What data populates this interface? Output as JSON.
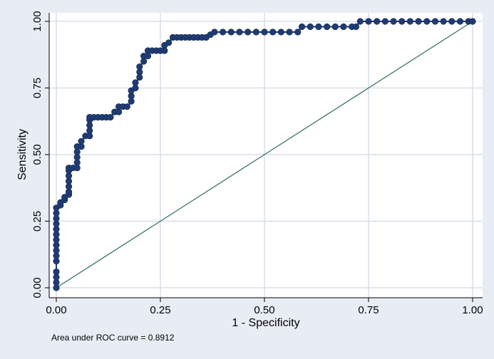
{
  "chart_data": {
    "type": "scatter",
    "title": "",
    "xlabel": "1 - Specificity",
    "ylabel": "Sensitivity",
    "xlim": [
      0,
      1
    ],
    "ylim": [
      0,
      1
    ],
    "x_ticks": [
      "0.00",
      "0.25",
      "0.50",
      "0.75",
      "1.00"
    ],
    "y_ticks": [
      "0.00",
      "0.25",
      "0.50",
      "0.75",
      "1.00"
    ],
    "grid": true,
    "annotation": "Area under ROC curve = 0.8912",
    "colors": {
      "background": "#e8ecf4",
      "plot_area": "#ffffff",
      "marker": "#1f3b73",
      "reference_line": "#2e6b5e",
      "grid": "#d8dde8"
    },
    "series": [
      {
        "type": "line+markers",
        "points": [
          [
            0.0,
            0.0
          ],
          [
            0.0,
            0.02
          ],
          [
            0.0,
            0.04
          ],
          [
            0.0,
            0.06
          ],
          [
            0.0,
            0.1
          ],
          [
            0.0,
            0.12
          ],
          [
            0.0,
            0.14
          ],
          [
            0.0,
            0.16
          ],
          [
            0.0,
            0.18
          ],
          [
            0.0,
            0.2
          ],
          [
            0.0,
            0.22
          ],
          [
            0.0,
            0.24
          ],
          [
            0.0,
            0.26
          ],
          [
            0.0,
            0.28
          ],
          [
            0.0,
            0.3
          ],
          [
            0.01,
            0.31
          ],
          [
            0.01,
            0.32
          ],
          [
            0.02,
            0.33
          ],
          [
            0.02,
            0.34
          ],
          [
            0.03,
            0.35
          ],
          [
            0.03,
            0.36
          ],
          [
            0.03,
            0.38
          ],
          [
            0.03,
            0.4
          ],
          [
            0.03,
            0.42
          ],
          [
            0.03,
            0.44
          ],
          [
            0.03,
            0.45
          ],
          [
            0.04,
            0.45
          ],
          [
            0.05,
            0.45
          ],
          [
            0.05,
            0.47
          ],
          [
            0.05,
            0.49
          ],
          [
            0.05,
            0.51
          ],
          [
            0.05,
            0.53
          ],
          [
            0.06,
            0.53
          ],
          [
            0.06,
            0.55
          ],
          [
            0.07,
            0.57
          ],
          [
            0.08,
            0.57
          ],
          [
            0.08,
            0.59
          ],
          [
            0.08,
            0.61
          ],
          [
            0.08,
            0.63
          ],
          [
            0.08,
            0.64
          ],
          [
            0.09,
            0.64
          ],
          [
            0.1,
            0.64
          ],
          [
            0.11,
            0.64
          ],
          [
            0.12,
            0.64
          ],
          [
            0.13,
            0.64
          ],
          [
            0.14,
            0.66
          ],
          [
            0.15,
            0.66
          ],
          [
            0.15,
            0.68
          ],
          [
            0.16,
            0.68
          ],
          [
            0.17,
            0.68
          ],
          [
            0.18,
            0.7
          ],
          [
            0.18,
            0.72
          ],
          [
            0.18,
            0.74
          ],
          [
            0.19,
            0.75
          ],
          [
            0.19,
            0.77
          ],
          [
            0.2,
            0.79
          ],
          [
            0.2,
            0.81
          ],
          [
            0.2,
            0.83
          ],
          [
            0.21,
            0.85
          ],
          [
            0.21,
            0.87
          ],
          [
            0.22,
            0.87
          ],
          [
            0.22,
            0.89
          ],
          [
            0.23,
            0.89
          ],
          [
            0.24,
            0.89
          ],
          [
            0.25,
            0.89
          ],
          [
            0.26,
            0.89
          ],
          [
            0.26,
            0.91
          ],
          [
            0.27,
            0.92
          ],
          [
            0.28,
            0.94
          ],
          [
            0.29,
            0.94
          ],
          [
            0.3,
            0.94
          ],
          [
            0.31,
            0.94
          ],
          [
            0.32,
            0.94
          ],
          [
            0.33,
            0.94
          ],
          [
            0.34,
            0.94
          ],
          [
            0.35,
            0.94
          ],
          [
            0.36,
            0.94
          ],
          [
            0.37,
            0.95
          ],
          [
            0.38,
            0.96
          ],
          [
            0.4,
            0.96
          ],
          [
            0.42,
            0.96
          ],
          [
            0.44,
            0.96
          ],
          [
            0.46,
            0.96
          ],
          [
            0.48,
            0.96
          ],
          [
            0.5,
            0.96
          ],
          [
            0.52,
            0.96
          ],
          [
            0.54,
            0.96
          ],
          [
            0.56,
            0.96
          ],
          [
            0.58,
            0.96
          ],
          [
            0.59,
            0.98
          ],
          [
            0.61,
            0.98
          ],
          [
            0.63,
            0.98
          ],
          [
            0.65,
            0.98
          ],
          [
            0.67,
            0.98
          ],
          [
            0.69,
            0.98
          ],
          [
            0.71,
            0.98
          ],
          [
            0.72,
            0.98
          ],
          [
            0.73,
            1.0
          ],
          [
            0.75,
            1.0
          ],
          [
            0.77,
            1.0
          ],
          [
            0.79,
            1.0
          ],
          [
            0.81,
            1.0
          ],
          [
            0.83,
            1.0
          ],
          [
            0.85,
            1.0
          ],
          [
            0.87,
            1.0
          ],
          [
            0.89,
            1.0
          ],
          [
            0.91,
            1.0
          ],
          [
            0.93,
            1.0
          ],
          [
            0.95,
            1.0
          ],
          [
            0.97,
            1.0
          ],
          [
            0.99,
            1.0
          ],
          [
            1.0,
            1.0
          ]
        ]
      },
      {
        "type": "reference-line",
        "points": [
          [
            0,
            0
          ],
          [
            1,
            1
          ]
        ]
      }
    ]
  }
}
